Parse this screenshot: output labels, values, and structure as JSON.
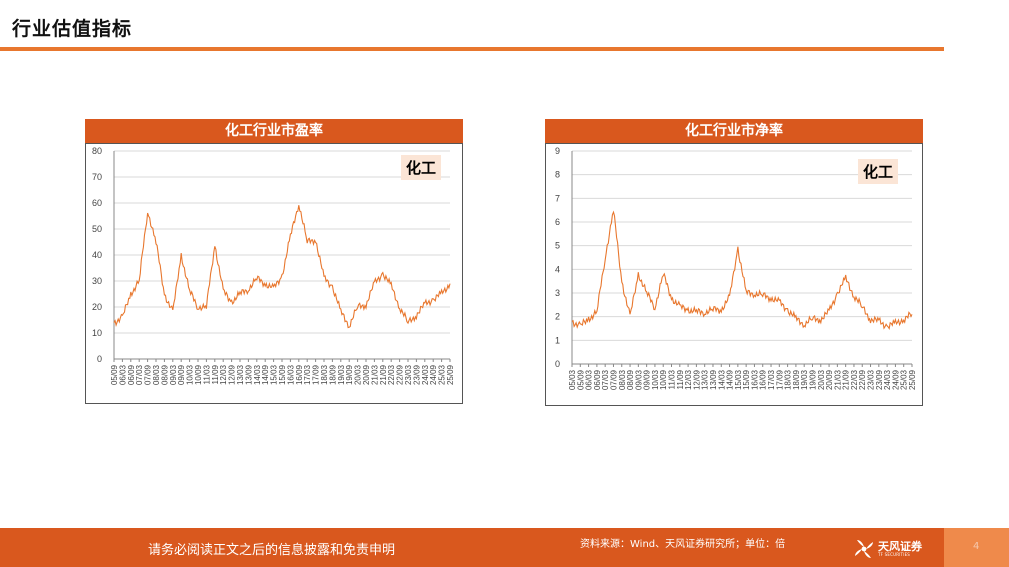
{
  "page": {
    "title": "行业估值指标"
  },
  "footer": {
    "disclaimer": "请务必阅读正文之后的信息披露和免责申明",
    "source": "资料来源：Wind、天风证券研究所；单位：倍",
    "brand": "天风证券",
    "brand_en": "TF SECURITIES",
    "page_number": "4"
  },
  "charts": [
    {
      "header": "化工行业市盈率",
      "badge": "化工"
    },
    {
      "header": "化工行业市净率",
      "badge": "化工"
    }
  ],
  "colors": {
    "accent": "#d9581e",
    "line": "#e8772e",
    "badge_bg": "#fbe5d6"
  },
  "chart_data": [
    {
      "type": "line",
      "title": "化工行业市盈率",
      "legend": "top-right",
      "grid": true,
      "ylim": [
        0,
        80
      ],
      "yticks": [
        0,
        10,
        20,
        30,
        40,
        50,
        60,
        70,
        80
      ],
      "categories": [
        "05/09",
        "06/03",
        "06/09",
        "07/03",
        "07/09",
        "08/03",
        "08/09",
        "09/03",
        "09/09",
        "10/03",
        "10/09",
        "11/03",
        "11/09",
        "12/03",
        "12/09",
        "13/03",
        "13/09",
        "14/03",
        "14/09",
        "15/03",
        "15/09",
        "16/03",
        "16/09",
        "17/03",
        "17/09",
        "18/03",
        "18/09",
        "19/03",
        "19/09",
        "20/03",
        "20/09",
        "21/03",
        "21/09",
        "22/03",
        "22/09",
        "23/03",
        "23/09",
        "24/03",
        "24/09",
        "25/03",
        "25/09"
      ],
      "series": [
        {
          "name": "化工",
          "values": [
            14,
            16,
            25,
            30,
            57,
            45,
            25,
            18,
            40,
            26,
            20,
            20,
            44,
            26,
            22,
            25,
            27,
            31,
            29,
            27,
            32,
            47,
            60,
            45,
            46,
            31,
            28,
            18,
            13,
            20,
            21,
            29,
            33,
            28,
            20,
            14,
            17,
            21,
            23,
            25,
            29
          ]
        }
      ]
    },
    {
      "type": "line",
      "title": "化工行业市净率",
      "legend": "top-right",
      "grid": true,
      "ylim": [
        0,
        9
      ],
      "yticks": [
        0,
        1,
        2,
        3,
        4,
        5,
        6,
        7,
        8,
        9
      ],
      "categories": [
        "05/03",
        "05/09",
        "06/03",
        "06/09",
        "07/03",
        "07/09",
        "08/03",
        "08/09",
        "09/03",
        "09/09",
        "10/03",
        "10/09",
        "11/03",
        "11/09",
        "12/03",
        "12/09",
        "13/03",
        "13/09",
        "14/03",
        "14/09",
        "15/03",
        "15/09",
        "16/03",
        "16/09",
        "17/03",
        "17/09",
        "18/03",
        "18/09",
        "19/03",
        "19/09",
        "20/03",
        "20/09",
        "21/03",
        "21/09",
        "22/03",
        "22/09",
        "23/03",
        "23/09",
        "24/03",
        "24/09",
        "25/03",
        "25/09"
      ],
      "series": [
        {
          "name": "化工",
          "values": [
            1.8,
            1.6,
            1.9,
            2.2,
            4.5,
            6.5,
            3.5,
            2.0,
            3.8,
            3.0,
            2.4,
            3.8,
            2.8,
            2.4,
            2.3,
            2.2,
            2.2,
            2.3,
            2.3,
            2.8,
            4.9,
            3.0,
            3.0,
            2.9,
            2.8,
            2.6,
            2.3,
            1.9,
            1.7,
            1.9,
            1.9,
            2.2,
            3.0,
            3.6,
            2.9,
            2.4,
            1.9,
            1.8,
            1.6,
            1.7,
            1.9,
            2.1
          ]
        }
      ]
    }
  ]
}
